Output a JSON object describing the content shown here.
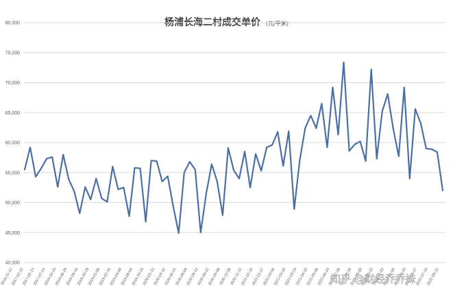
{
  "colors": {
    "line": "#4a6fa5",
    "grid": "#d9d9d9",
    "axis_text": "#595959"
  },
  "watermark": "知乎 @财经乔乔妹",
  "chart_data": {
    "type": "line",
    "title": "杨浦长海二村成交单价",
    "title_unit": "(元/平米)",
    "ylim": [
      40000,
      80000
    ],
    "yticks": [
      "40,000",
      "45,000",
      "50,000",
      "55,000",
      "60,000",
      "65,000",
      "70,000",
      "75,000",
      "80,000"
    ],
    "ytick_values": [
      40000,
      45000,
      50000,
      55000,
      60000,
      65000,
      70000,
      75000,
      80000
    ],
    "grid": true,
    "legend": "none",
    "x_labels": [
      "2016-11-12",
      "2017-02-22",
      "2017-05-13",
      "2017-07-14",
      "2018-03-15",
      "2018-06-29",
      "2018-08-16",
      "2018-10-29",
      "2019-01-06",
      "2019-01-15",
      "2019-04-08",
      "2019-06-04",
      "2019-10-19",
      "2020-01-13",
      "2020-04-12",
      "2020-06-21",
      "2020-08-08",
      "2020-08-13",
      "2020-08-22",
      "2020-09-06",
      "2020-11-06",
      "2020-11-22",
      "2021-01-16",
      "2021-01-27",
      "2021-03-06",
      "2021-03-18",
      "2021-03-24",
      "2021-04-10",
      "2021-05-06",
      "2021-06-14",
      "2021-07-20",
      "2021-08-16",
      "2021-09-03",
      "2021-10-15",
      "2021-11-22",
      "2022-01-05",
      "2022-03-18",
      "2022-05-27",
      "2022-07-10",
      "2022-09-21"
    ],
    "values": [
      55500,
      59200,
      54300,
      55700,
      57300,
      57600,
      52600,
      58000,
      53900,
      51900,
      48200,
      52600,
      50500,
      54000,
      50700,
      50100,
      56000,
      52200,
      52500,
      47700,
      55800,
      55700,
      46800,
      57000,
      56900,
      53500,
      54400,
      49400,
      44900,
      55000,
      56800,
      55500,
      45000,
      51500,
      56400,
      53500,
      47900,
      59100,
      55400,
      54000,
      58500,
      52500,
      58100,
      55300,
      59200,
      59600,
      61800,
      56100,
      61900,
      48900,
      57000,
      62400,
      64500,
      62400,
      66500,
      59200,
      69200,
      61300,
      73400,
      58600,
      59700,
      60200,
      56900,
      72200,
      57300,
      65200,
      68100,
      62300,
      57700,
      69200,
      54000,
      65600,
      63200,
      59000,
      58900,
      58400,
      52000
    ]
  }
}
